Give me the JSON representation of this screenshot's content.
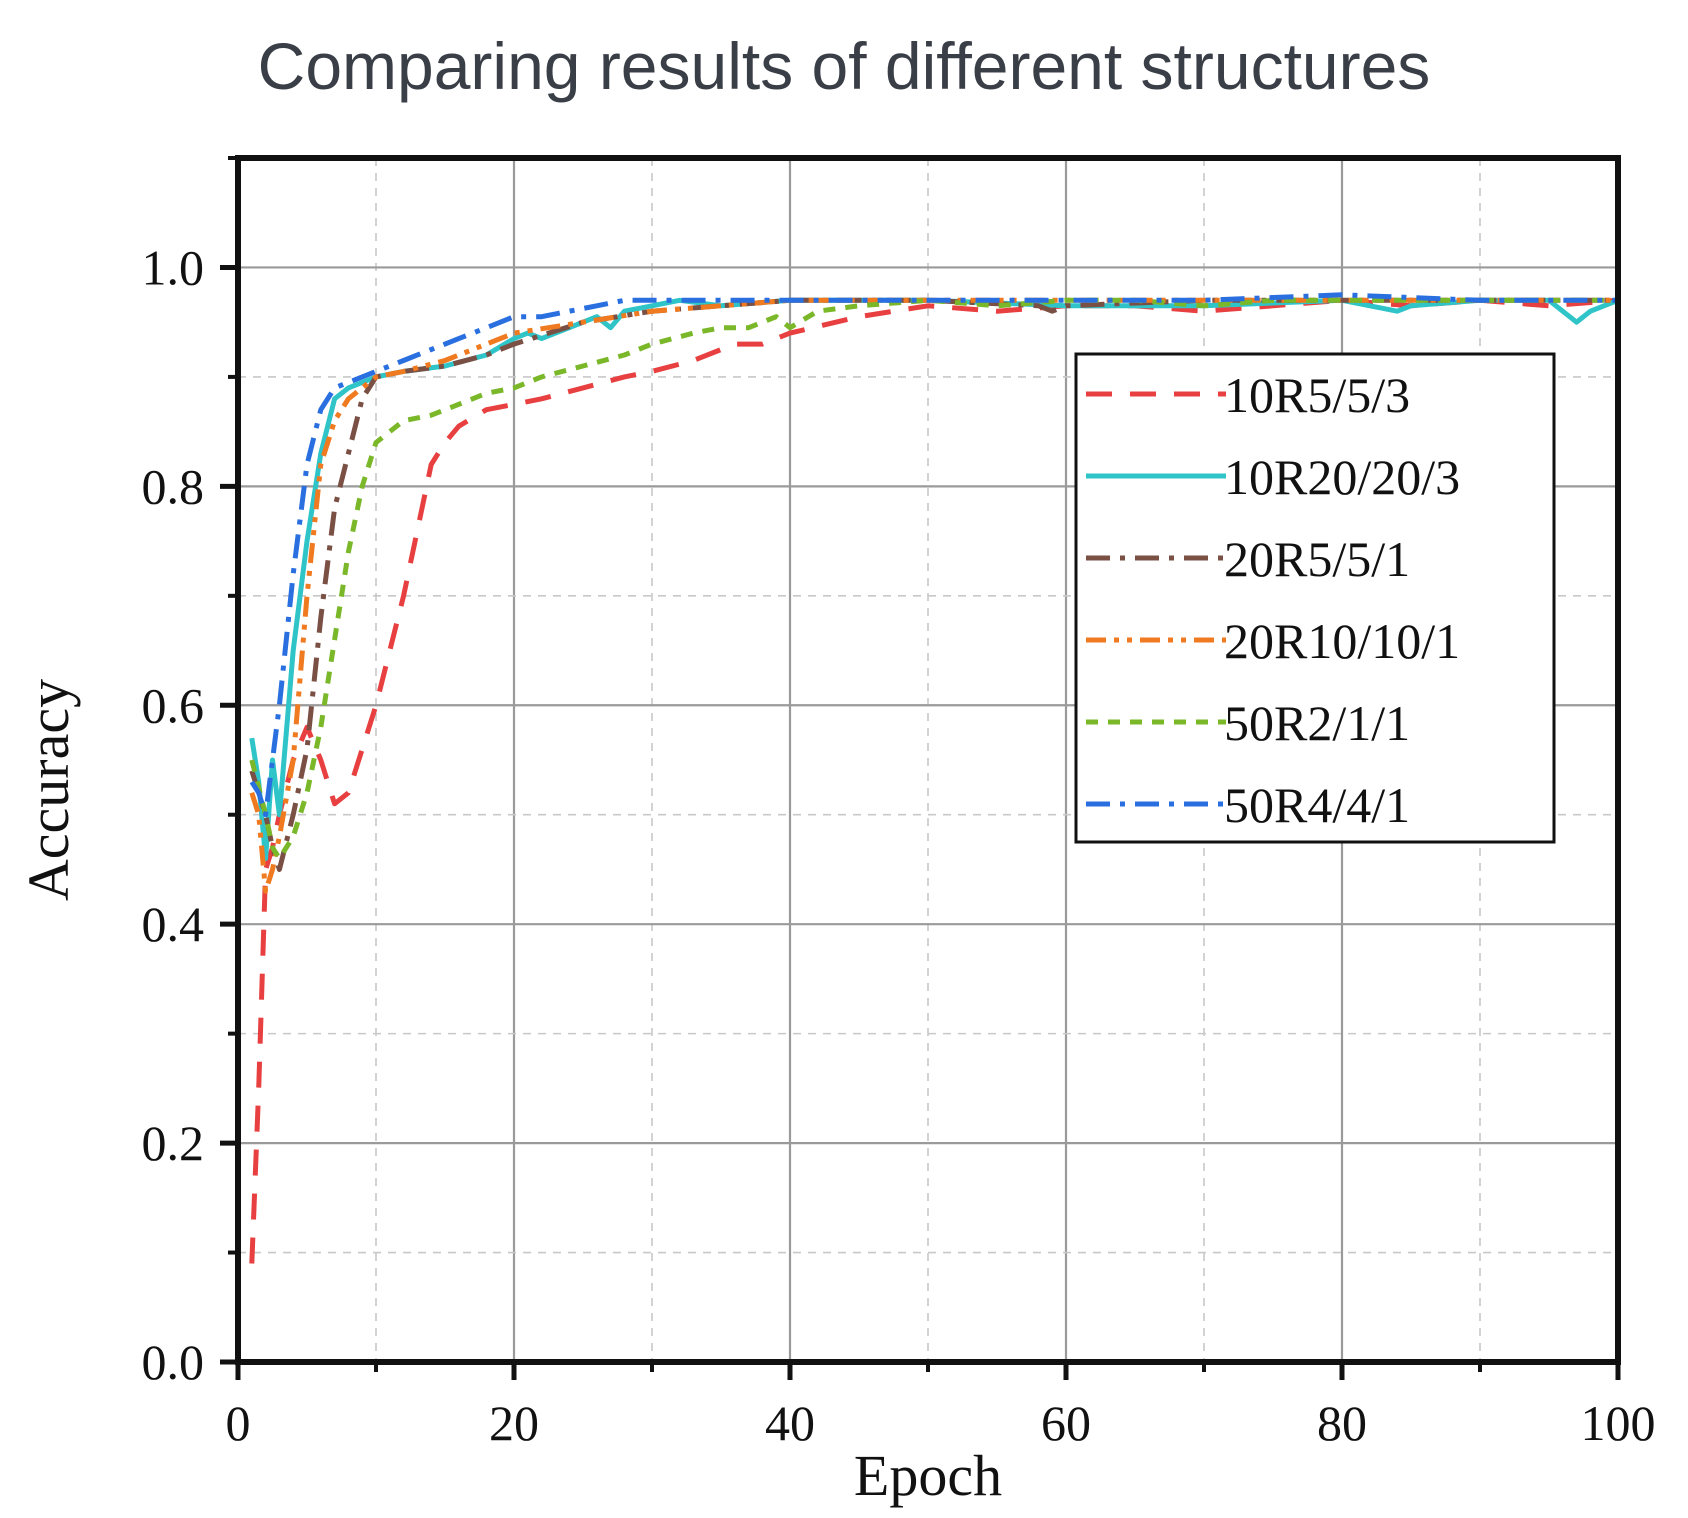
{
  "chart_data": {
    "type": "line",
    "title": "Comparing results of different structures",
    "xlabel": "Epoch",
    "ylabel": "Accuracy",
    "xlim": [
      0,
      100
    ],
    "ylim": [
      0,
      1.1
    ],
    "xticks": [
      "0",
      "20",
      "40",
      "60",
      "80",
      "100"
    ],
    "yticks": [
      "0.0",
      "0.2",
      "0.4",
      "0.6",
      "0.8",
      "1.0"
    ],
    "grid": true,
    "legend_position": "upper-right",
    "series": [
      {
        "name": "10R5/5/3",
        "color": "#e84040",
        "dash": "dashed",
        "x": [
          1,
          1.5,
          2,
          2.5,
          3,
          4,
          5,
          6,
          7,
          8,
          9,
          10,
          11,
          12,
          13,
          14,
          15,
          16,
          18,
          20,
          22,
          25,
          28,
          30,
          33,
          36,
          38,
          40,
          45,
          50,
          55,
          60,
          65,
          70,
          75,
          80,
          85,
          90,
          95,
          100
        ],
        "y": [
          0.09,
          0.25,
          0.45,
          0.47,
          0.5,
          0.55,
          0.58,
          0.55,
          0.51,
          0.52,
          0.56,
          0.6,
          0.65,
          0.7,
          0.76,
          0.82,
          0.84,
          0.855,
          0.87,
          0.875,
          0.88,
          0.89,
          0.9,
          0.905,
          0.915,
          0.93,
          0.93,
          0.94,
          0.955,
          0.965,
          0.96,
          0.965,
          0.965,
          0.96,
          0.965,
          0.97,
          0.965,
          0.97,
          0.965,
          0.97
        ]
      },
      {
        "name": "10R20/20/3",
        "color": "#2ec4c8",
        "dash": "solid",
        "x": [
          1,
          1.5,
          2,
          2.5,
          3,
          4,
          5,
          6,
          7,
          8,
          10,
          12,
          15,
          18,
          20,
          21,
          22,
          24,
          25,
          26,
          27,
          28,
          30,
          32,
          35,
          40,
          50,
          60,
          70,
          80,
          84,
          85,
          90,
          95,
          97,
          98,
          100
        ],
        "y": [
          0.57,
          0.53,
          0.46,
          0.55,
          0.5,
          0.65,
          0.75,
          0.83,
          0.88,
          0.89,
          0.9,
          0.905,
          0.91,
          0.92,
          0.935,
          0.94,
          0.935,
          0.945,
          0.95,
          0.955,
          0.945,
          0.96,
          0.965,
          0.97,
          0.965,
          0.97,
          0.97,
          0.965,
          0.965,
          0.97,
          0.96,
          0.965,
          0.97,
          0.97,
          0.95,
          0.96,
          0.97
        ]
      },
      {
        "name": "20R5/5/1",
        "color": "#7a5045",
        "dash": "dashdot",
        "x": [
          1,
          2,
          2.5,
          3,
          4,
          5,
          6,
          7,
          8,
          9,
          10,
          12,
          15,
          18,
          20,
          25,
          30,
          35,
          40,
          50,
          58,
          59,
          60,
          70,
          80,
          90,
          100
        ],
        "y": [
          0.54,
          0.5,
          0.47,
          0.45,
          0.5,
          0.56,
          0.68,
          0.78,
          0.83,
          0.88,
          0.9,
          0.905,
          0.91,
          0.92,
          0.93,
          0.95,
          0.96,
          0.965,
          0.97,
          0.97,
          0.965,
          0.96,
          0.965,
          0.97,
          0.97,
          0.97,
          0.97
        ]
      },
      {
        "name": "20R10/10/1",
        "color": "#f07a20",
        "dash": "dashdotdot",
        "x": [
          1,
          1.5,
          2,
          2.5,
          3,
          4,
          5,
          6,
          7,
          8,
          10,
          12,
          15,
          18,
          20,
          25,
          30,
          35,
          40,
          50,
          60,
          70,
          80,
          90,
          100
        ],
        "y": [
          0.52,
          0.5,
          0.43,
          0.45,
          0.48,
          0.55,
          0.7,
          0.82,
          0.86,
          0.88,
          0.9,
          0.905,
          0.915,
          0.93,
          0.94,
          0.95,
          0.96,
          0.965,
          0.97,
          0.97,
          0.97,
          0.97,
          0.97,
          0.97,
          0.97
        ]
      },
      {
        "name": "50R2/1/1",
        "color": "#7ab82a",
        "dash": "shortdash",
        "x": [
          1,
          2,
          2.5,
          3,
          4,
          5,
          6,
          7,
          8,
          9,
          10,
          11,
          12,
          14,
          16,
          18,
          20,
          22,
          25,
          28,
          30,
          33,
          35,
          37,
          38,
          39,
          40,
          42,
          45,
          50,
          55,
          60,
          65,
          70,
          75,
          80,
          85,
          90,
          95,
          100
        ],
        "y": [
          0.55,
          0.5,
          0.47,
          0.46,
          0.48,
          0.52,
          0.58,
          0.66,
          0.74,
          0.8,
          0.84,
          0.85,
          0.86,
          0.865,
          0.875,
          0.885,
          0.89,
          0.9,
          0.91,
          0.92,
          0.93,
          0.94,
          0.945,
          0.945,
          0.95,
          0.955,
          0.945,
          0.96,
          0.965,
          0.97,
          0.965,
          0.97,
          0.97,
          0.965,
          0.97,
          0.97,
          0.97,
          0.97,
          0.97,
          0.97
        ]
      },
      {
        "name": "50R4/4/1",
        "color": "#2a6fe0",
        "dash": "dashdot",
        "x": [
          1,
          1.5,
          2,
          2.5,
          3,
          4,
          5,
          6,
          7,
          8,
          10,
          12,
          14,
          16,
          18,
          20,
          22,
          24,
          26,
          28,
          30,
          35,
          40,
          50,
          60,
          70,
          80,
          90,
          100
        ],
        "y": [
          0.53,
          0.52,
          0.5,
          0.55,
          0.6,
          0.72,
          0.82,
          0.87,
          0.89,
          0.895,
          0.905,
          0.915,
          0.925,
          0.935,
          0.945,
          0.955,
          0.955,
          0.96,
          0.965,
          0.97,
          0.97,
          0.97,
          0.97,
          0.97,
          0.97,
          0.97,
          0.975,
          0.97,
          0.97
        ]
      }
    ]
  }
}
